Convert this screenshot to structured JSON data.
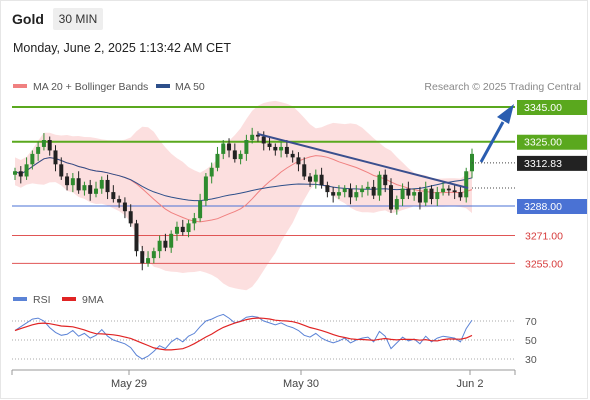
{
  "header": {
    "instrument": "Gold",
    "timeframe": "30 MIN"
  },
  "datetime": "Monday, June 2, 2025 1:13:42 AM CET",
  "legend": {
    "bollinger": "MA 20 + Bollinger Bands",
    "ma50": "MA 50",
    "credit": "Research © 2025 Trading Central",
    "bollinger_color": "#f08080",
    "ma50_color": "#2d4f8a"
  },
  "chart_data": {
    "type": "candlestick",
    "x_axis": {
      "labels": [
        "May 29",
        "May 30",
        "Jun 2"
      ]
    },
    "price_axis": {
      "range": [
        3240,
        3360
      ]
    },
    "last_price": {
      "value": 3312.83,
      "label": "3312.83",
      "color": "#222222"
    },
    "levels": [
      {
        "value": 3345.0,
        "label": "3345.00",
        "type": "resistance",
        "color": "#5aa81e"
      },
      {
        "value": 3325.0,
        "label": "3325.00",
        "type": "resistance",
        "color": "#5aa81e"
      },
      {
        "value": 3288.0,
        "label": "3288.00",
        "type": "pivot",
        "color": "#4a72d4"
      },
      {
        "value": 3271.0,
        "label": "3271.00",
        "type": "support",
        "color": "#e05555"
      },
      {
        "value": 3255.0,
        "label": "3255.00",
        "type": "support",
        "color": "#e05555"
      }
    ],
    "closes": [
      3308,
      3305,
      3312,
      3318,
      3322,
      3326,
      3320,
      3312,
      3305,
      3300,
      3304,
      3297,
      3300,
      3295,
      3298,
      3303,
      3296,
      3292,
      3290,
      3285,
      3278,
      3262,
      3255,
      3258,
      3262,
      3268,
      3264,
      3272,
      3276,
      3273,
      3278,
      3281,
      3291,
      3305,
      3310,
      3318,
      3324,
      3320,
      3315,
      3318,
      3326,
      3329,
      3328,
      3324,
      3322,
      3320,
      3322,
      3318,
      3316,
      3312,
      3305,
      3302,
      3306,
      3300,
      3296,
      3294,
      3296,
      3298,
      3293,
      3296,
      3298,
      3299,
      3294,
      3306,
      3300,
      3286,
      3292,
      3298,
      3294,
      3296,
      3290,
      3298,
      3292,
      3296,
      3298,
      3297,
      3296,
      3293,
      3308,
      3318
    ],
    "rsi": {
      "series": [
        "RSI",
        "9MA"
      ],
      "levels": [
        30,
        50,
        70
      ],
      "range": [
        20,
        80
      ],
      "rsi_values": [
        60,
        64,
        68,
        72,
        73,
        70,
        63,
        58,
        55,
        56,
        60,
        54,
        57,
        52,
        55,
        61,
        54,
        50,
        48,
        46,
        42,
        34,
        30,
        33,
        38,
        44,
        41,
        48,
        52,
        48,
        54,
        57,
        64,
        70,
        72,
        75,
        77,
        73,
        68,
        70,
        74,
        75,
        74,
        70,
        68,
        66,
        68,
        65,
        63,
        60,
        55,
        53,
        57,
        52,
        49,
        47,
        49,
        52,
        47,
        50,
        52,
        53,
        48,
        59,
        54,
        41,
        47,
        53,
        49,
        51,
        46,
        54,
        48,
        52,
        54,
        53,
        52,
        48,
        62,
        71
      ],
      "colors": {
        "rsi": "#5b83d6",
        "ma9": "#e02424"
      }
    }
  }
}
